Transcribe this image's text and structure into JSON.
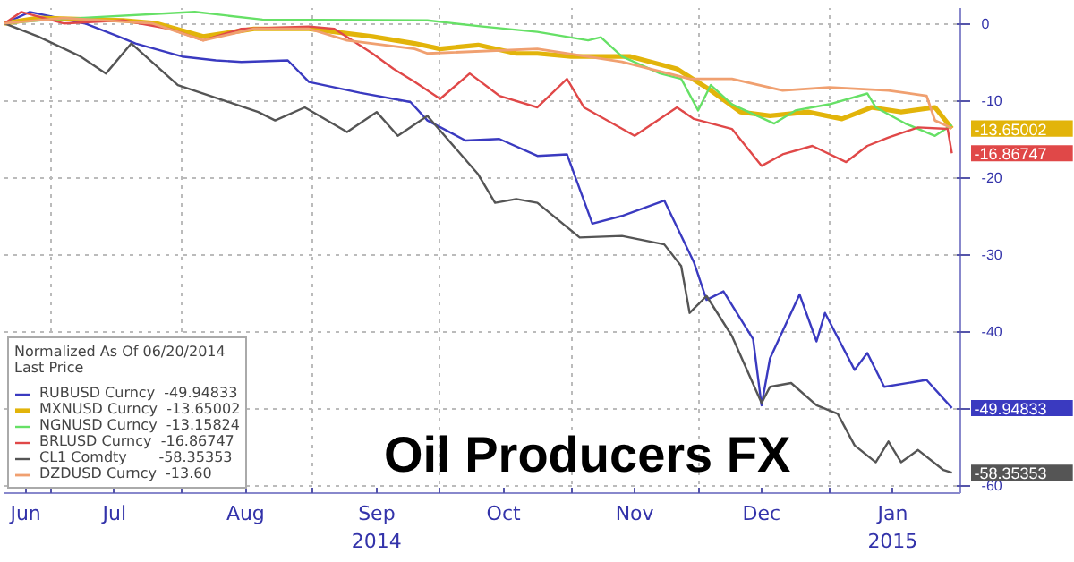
{
  "chart_data": {
    "type": "line",
    "title": "Oil Producers FX",
    "legend_title": "Normalized As Of 06/20/2014\nLast Price",
    "xlim": [
      "2014-06-20",
      "2015-02-01"
    ],
    "ylim": [
      -61,
      2
    ],
    "xticks": [
      {
        "value": "2014-06-25",
        "label": "Jun"
      },
      {
        "value": "2014-07-01",
        "label": null
      },
      {
        "value": "2014-07-16",
        "label": "Jul"
      },
      {
        "value": "2014-08-01",
        "label": null
      },
      {
        "value": "2014-08-16",
        "label": "Aug"
      },
      {
        "value": "2014-09-01",
        "label": null
      },
      {
        "value": "2014-09-16",
        "label": "Sep\n2014"
      },
      {
        "value": "2014-10-01",
        "label": null
      },
      {
        "value": "2014-10-16",
        "label": "Oct"
      },
      {
        "value": "2014-11-01",
        "label": null
      },
      {
        "value": "2014-11-16",
        "label": "Nov"
      },
      {
        "value": "2014-12-01",
        "label": null
      },
      {
        "value": "2014-12-16",
        "label": "Dec"
      },
      {
        "value": "2015-01-01",
        "label": null
      },
      {
        "value": "2015-01-16",
        "label": "Jan\n2015"
      },
      {
        "value": "2015-02-01",
        "label": null
      }
    ],
    "yticks": [
      0,
      -10,
      -20,
      -30,
      -40,
      {
        "value": -50,
        "label": null
      },
      -60
    ],
    "grid": true,
    "legend": "bottom left",
    "series": [
      {
        "name": "RUBUSD Curncy  -49.94833",
        "color": "#3a3ac0",
        "x": [
          "2014-06-20",
          "2014-06-26",
          "2014-07-09",
          "2014-07-17",
          "2014-07-21",
          "2014-08-01",
          "2014-08-09",
          "2014-08-15",
          "2014-08-26",
          "2014-08-31",
          "2014-09-12",
          "2014-09-24",
          "2014-09-28",
          "2014-10-07",
          "2014-10-15",
          "2014-10-24",
          "2014-10-31",
          "2014-11-06",
          "2014-11-13",
          "2014-11-23",
          "2014-11-30",
          "2014-12-03",
          "2014-12-07",
          "2014-12-14",
          "2014-12-16",
          "2014-12-18",
          "2014-12-25",
          "2014-12-29",
          "2014-12-31",
          "2015-01-07",
          "2015-01-10",
          "2015-01-14",
          "2015-01-24",
          "2015-01-30"
        ],
        "values": [
          0,
          1.5,
          0,
          -1.7,
          -2.6,
          -4.3,
          -4.8,
          -5,
          -4.8,
          -7.6,
          -9,
          -10.2,
          -12.6,
          -15.2,
          -15,
          -17.2,
          -17,
          -26,
          -25,
          -23,
          -31,
          -35.9,
          -34.8,
          -41,
          -49.6,
          -43.5,
          -35.2,
          -41.3,
          -37.6,
          -45,
          -42.8,
          -47.2,
          -46.3,
          -49.94833
        ],
        "value_labels": [
          null,
          null,
          null,
          null,
          null,
          null,
          null,
          null,
          null,
          null,
          null,
          null,
          null,
          null,
          null,
          null,
          null,
          null,
          null,
          null,
          null,
          null,
          null,
          null,
          null,
          null,
          null,
          null,
          null,
          null,
          null,
          null,
          null,
          "-49.94833"
        ]
      },
      {
        "name": "MXNUSD Curncy  -13.65002",
        "color": "#e2b40a",
        "x": [
          "2014-06-20",
          "2014-06-28",
          "2014-07-18",
          "2014-07-26",
          "2014-08-06",
          "2014-08-18",
          "2014-08-31",
          "2014-09-06",
          "2014-09-15",
          "2014-09-25",
          "2014-10-01",
          "2014-10-10",
          "2014-10-19",
          "2014-10-24",
          "2014-11-01",
          "2014-11-15",
          "2014-11-26",
          "2014-12-04",
          "2014-12-11",
          "2014-12-18",
          "2014-12-27",
          "2015-01-04",
          "2015-01-11",
          "2015-01-18",
          "2015-01-26",
          "2015-01-30"
        ],
        "values": [
          0,
          0.7,
          0.4,
          0,
          -1.7,
          -0.7,
          -0.7,
          -1.1,
          -1.7,
          -2.6,
          -3.3,
          -2.8,
          -3.9,
          -3.9,
          -4.3,
          -4.3,
          -5.9,
          -8.7,
          -11.5,
          -12,
          -11.5,
          -12.4,
          -10.9,
          -11.5,
          -10.9,
          -13.65002
        ],
        "value_labels": [
          null,
          null,
          null,
          null,
          null,
          null,
          null,
          null,
          null,
          null,
          null,
          null,
          null,
          null,
          null,
          null,
          null,
          null,
          null,
          null,
          null,
          null,
          null,
          null,
          null,
          "-13.65002"
        ]
      },
      {
        "name": "NGNUSD Curncy  -13.15824",
        "color": "#66e066",
        "x": [
          "2014-06-20",
          "2014-07-01",
          "2014-08-04",
          "2014-08-20",
          "2014-09-28",
          "2014-10-11",
          "2014-10-24",
          "2014-11-05",
          "2014-11-08",
          "2014-11-13",
          "2014-11-22",
          "2014-11-27",
          "2014-12-01",
          "2014-12-04",
          "2014-12-09",
          "2014-12-19",
          "2014-12-24",
          "2015-01-01",
          "2015-01-10",
          "2015-01-12",
          "2015-01-19",
          "2015-01-26",
          "2015-01-30"
        ],
        "values": [
          0,
          0.5,
          1.5,
          0.5,
          0.4,
          -0.4,
          -1.1,
          -2.2,
          -1.8,
          -4.3,
          -6.5,
          -7.2,
          -11.3,
          -8,
          -10.5,
          -13,
          -11.3,
          -10.5,
          -9.1,
          -10.9,
          -13,
          -14.6,
          -13.15824
        ]
      },
      {
        "name": "BRLUSD Curncy  -16.86747",
        "color": "#e04848",
        "x": [
          "2014-06-20",
          "2014-06-24",
          "2014-07-04",
          "2014-07-18",
          "2014-07-29",
          "2014-08-06",
          "2014-08-15",
          "2014-08-31",
          "2014-09-06",
          "2014-09-15",
          "2014-09-20",
          "2014-09-25",
          "2014-10-01",
          "2014-10-08",
          "2014-10-15",
          "2014-10-24",
          "2014-10-31",
          "2014-11-04",
          "2014-11-16",
          "2014-11-26",
          "2014-11-30",
          "2014-12-09",
          "2014-12-16",
          "2014-12-21",
          "2014-12-28",
          "2015-01-05",
          "2015-01-10",
          "2015-01-15",
          "2015-01-22",
          "2015-01-29",
          "2015-01-30"
        ],
        "values": [
          0,
          1.5,
          0,
          0.4,
          -0.7,
          -2.2,
          -0.7,
          -0.4,
          -0.7,
          -3.9,
          -5.9,
          -7.6,
          -9.8,
          -6.5,
          -9.4,
          -10.9,
          -7.2,
          -10.9,
          -14.6,
          -10.9,
          -12.4,
          -13.7,
          -18.5,
          -17,
          -15.9,
          -18,
          -15.9,
          -14.8,
          -13.5,
          -13.7,
          -16.86747
        ],
        "value_labels": [
          null,
          null,
          null,
          null,
          null,
          null,
          null,
          null,
          null,
          null,
          null,
          null,
          null,
          null,
          null,
          null,
          null,
          null,
          null,
          null,
          null,
          null,
          null,
          null,
          null,
          null,
          null,
          null,
          null,
          null,
          "-16.86747"
        ]
      },
      {
        "name": "CL1 Comdty       -58.35353",
        "color": "#555555",
        "x": [
          "2014-06-20",
          "2014-06-28",
          "2014-07-08",
          "2014-07-14",
          "2014-07-20",
          "2014-07-31",
          "2014-08-13",
          "2014-08-19",
          "2014-08-23",
          "2014-08-30",
          "2014-09-09",
          "2014-09-16",
          "2014-09-21",
          "2014-09-28",
          "2014-10-10",
          "2014-10-14",
          "2014-10-19",
          "2014-10-24",
          "2014-11-03",
          "2014-11-13",
          "2014-11-23",
          "2014-11-27",
          "2014-11-29",
          "2014-12-03",
          "2014-12-09",
          "2014-12-16",
          "2014-12-18",
          "2014-12-23",
          "2014-12-29",
          "2015-01-03",
          "2015-01-07",
          "2015-01-12",
          "2015-01-15",
          "2015-01-18",
          "2015-01-22",
          "2015-01-28",
          "2015-01-30"
        ],
        "values": [
          0,
          -1.7,
          -4.3,
          -6.5,
          -2.6,
          -8,
          -10.4,
          -11.5,
          -12.6,
          -10.9,
          -14.1,
          -11.5,
          -14.6,
          -12,
          -19.6,
          -23.3,
          -22.8,
          -23.3,
          -27.8,
          -27.6,
          -28.7,
          -31.5,
          -37.6,
          -35.4,
          -40.6,
          -49.3,
          -47.2,
          -46.7,
          -49.6,
          -50.7,
          -54.8,
          -57,
          -54.3,
          -57,
          -55.4,
          -58,
          -58.35353
        ],
        "value_labels": [
          null,
          null,
          null,
          null,
          null,
          null,
          null,
          null,
          null,
          null,
          null,
          null,
          null,
          null,
          null,
          null,
          null,
          null,
          null,
          null,
          null,
          null,
          null,
          null,
          null,
          null,
          null,
          null,
          null,
          null,
          null,
          null,
          null,
          null,
          null,
          null,
          "-58.35353"
        ]
      },
      {
        "name": "DZDUSD Curncy  -13.60",
        "color": "#f0a070",
        "x": [
          "2014-06-20",
          "2014-07-04",
          "2014-07-25",
          "2014-08-06",
          "2014-08-18",
          "2014-08-31",
          "2014-09-09",
          "2014-09-25",
          "2014-09-28",
          "2014-10-24",
          "2014-11-13",
          "2014-11-29",
          "2014-12-09",
          "2014-12-21",
          "2015-01-01",
          "2015-01-15",
          "2015-01-24",
          "2015-01-26",
          "2015-01-30"
        ],
        "values": [
          0,
          0.7,
          0,
          -2.2,
          -0.7,
          -0.7,
          -2.2,
          -3.3,
          -3.9,
          -3.3,
          -5,
          -7.2,
          -7.2,
          -8.7,
          -8.3,
          -8.7,
          -9.4,
          -12.6,
          -13.6
        ]
      }
    ]
  }
}
